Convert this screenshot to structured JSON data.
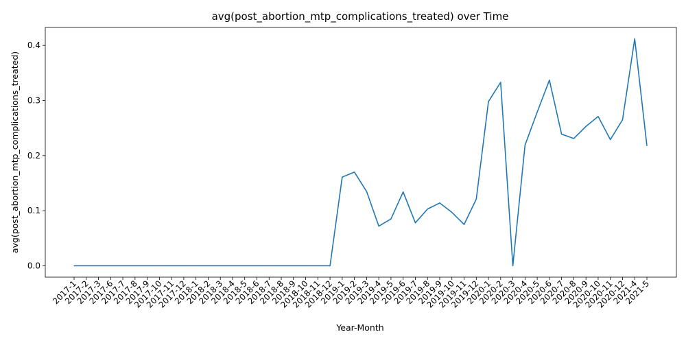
{
  "chart_data": {
    "type": "line",
    "title": "avg(post_abortion_mtp_complications_treated) over Time",
    "xlabel": "Year-Month",
    "ylabel": "avg(post_abortion_mtp_complications_treated)",
    "categories": [
      "2017-1",
      "2017-2",
      "2017-3",
      "2017-6",
      "2017-7",
      "2017-8",
      "2017-9",
      "2017-10",
      "2017-11",
      "2017-12",
      "2018-1",
      "2018-2",
      "2018-3",
      "2018-4",
      "2018-5",
      "2018-6",
      "2018-7",
      "2018-8",
      "2018-9",
      "2018-10",
      "2018-11",
      "2018-12",
      "2019-1",
      "2019-2",
      "2019-3",
      "2019-4",
      "2019-5",
      "2019-6",
      "2019-7",
      "2019-8",
      "2019-9",
      "2019-10",
      "2019-11",
      "2019-12",
      "2020-1",
      "2020-2",
      "2020-3",
      "2020-4",
      "2020-5",
      "2020-6",
      "2020-7",
      "2020-8",
      "2020-9",
      "2020-10",
      "2020-11",
      "2020-12",
      "2021-4",
      "2021-5"
    ],
    "series": [
      {
        "color": "#1f77b4",
        "values": [
          0,
          0,
          0,
          0,
          0,
          0,
          0,
          0,
          0,
          0,
          0,
          0,
          0,
          0,
          0,
          0,
          0,
          0,
          0,
          0,
          0,
          0,
          0.161,
          0.17,
          0.135,
          0.072,
          0.085,
          0.134,
          0.078,
          0.103,
          0.114,
          0.097,
          0.075,
          0.121,
          0.298,
          0.333,
          0.0,
          0.219,
          0.279,
          0.337,
          0.239,
          0.231,
          0.253,
          0.271,
          0.229,
          0.265,
          0.412,
          0.218
        ]
      }
    ],
    "ylim": [
      -0.0206,
      0.4326
    ],
    "yticks": [
      "0.0",
      "0.1",
      "0.2",
      "0.3",
      "0.4"
    ],
    "grid": false
  }
}
